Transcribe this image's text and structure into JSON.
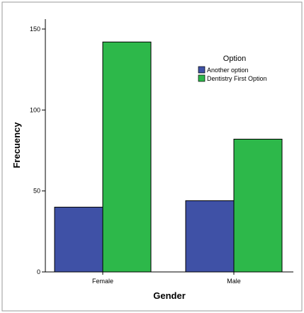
{
  "chart_data": {
    "type": "bar",
    "title": "",
    "xlabel": "Gender",
    "ylabel": "Frecuency",
    "categories": [
      "Female",
      "Male"
    ],
    "series": [
      {
        "name": "Another option",
        "values": [
          40,
          44
        ],
        "color": "#3f51a6"
      },
      {
        "name": "Dentistry First Option",
        "values": [
          142,
          82
        ],
        "color": "#2db84a"
      }
    ],
    "ylim": [
      0,
      150
    ],
    "yticks": [
      0,
      50,
      100,
      150
    ],
    "legend": {
      "title": "Option",
      "placement": "top-right"
    },
    "grid": false
  }
}
